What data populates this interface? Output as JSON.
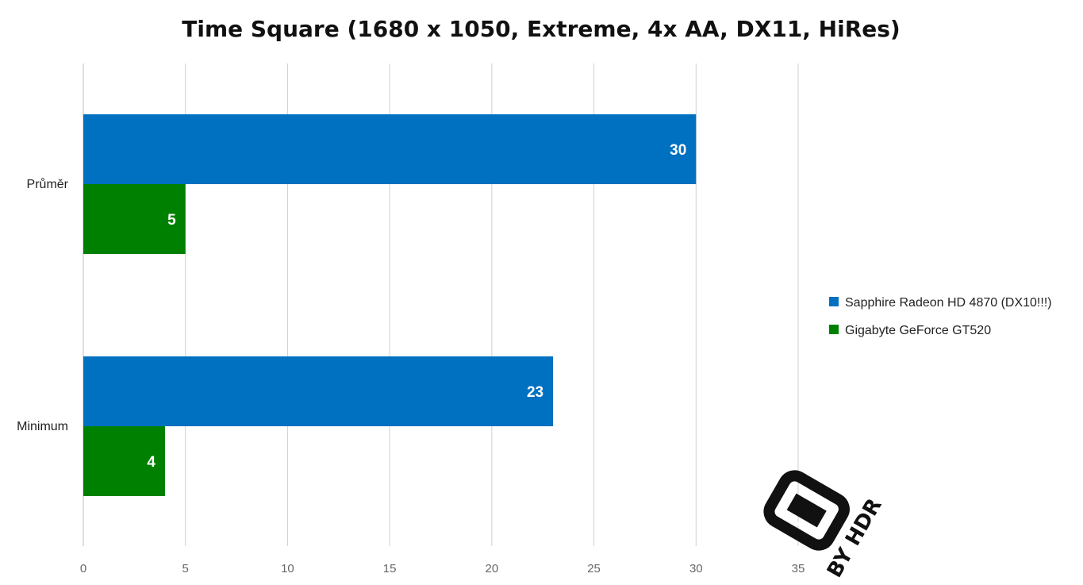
{
  "chart_data": {
    "type": "bar",
    "orientation": "horizontal",
    "title": "Time Square (1680 x 1050, Extreme, 4x AA, DX11, HiRes)",
    "categories": [
      "Průměr",
      "Minimum"
    ],
    "series": [
      {
        "name": "Sapphire Radeon HD 4870 (DX10!!!)",
        "values": [
          30,
          23
        ],
        "color": "#0070C0"
      },
      {
        "name": "Gigabyte GeForce GT520",
        "values": [
          5,
          4
        ],
        "color": "#008000"
      }
    ],
    "xlim": [
      0,
      35
    ],
    "xticks": [
      0,
      5,
      10,
      15,
      20,
      25,
      30,
      35
    ],
    "grid": true,
    "data_labels": true,
    "legend_position": "right"
  },
  "watermark": {
    "text": "BY HDR",
    "icon": "grunge-logo-icon"
  }
}
